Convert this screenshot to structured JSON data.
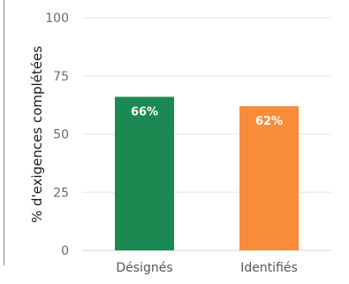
{
  "chart_data": {
    "type": "bar",
    "categories": [
      "Désignés",
      "Identifiés"
    ],
    "values": [
      66,
      62
    ],
    "data_labels": [
      "66%",
      "62%"
    ],
    "colors": [
      "#1a8a52",
      "#f98c3a"
    ],
    "ylabel": "% d'exigences complétées",
    "ylim": [
      0,
      100
    ],
    "yticks": [
      0,
      25,
      50,
      75,
      100
    ],
    "grid": true,
    "grid_color": "#e6e6e6"
  }
}
